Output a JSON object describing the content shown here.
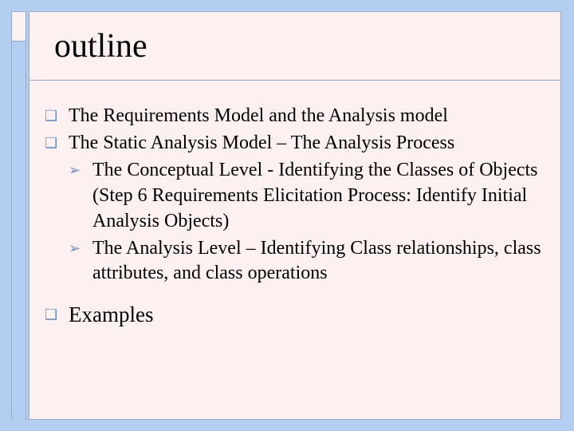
{
  "colors": {
    "page_bg": "#b3cef0",
    "card_bg": "#fcf1f0",
    "border": "#94a9c8",
    "bullet": "#6a8fc2",
    "text": "#000000"
  },
  "typography": {
    "title_fontsize": 42,
    "body_fontsize": 24,
    "examples_fontsize": 27,
    "font_family": "Times New Roman"
  },
  "bullets": {
    "level1_glyph": "❑",
    "level2_glyph": "➢"
  },
  "slide": {
    "title": "outline",
    "items": [
      {
        "level": 1,
        "text": "The Requirements Model and the Analysis model"
      },
      {
        "level": 1,
        "text": "The Static Analysis Model – The Analysis Process"
      },
      {
        "level": 2,
        "text": "The Conceptual Level - Identifying the Classes of Objects (Step 6 Requirements Elicitation Process: Identify Initial Analysis Objects)"
      },
      {
        "level": 2,
        "text": "The Analysis Level –  Identifying Class relationships, class attributes, and class operations"
      }
    ],
    "examples_label": "Examples"
  }
}
